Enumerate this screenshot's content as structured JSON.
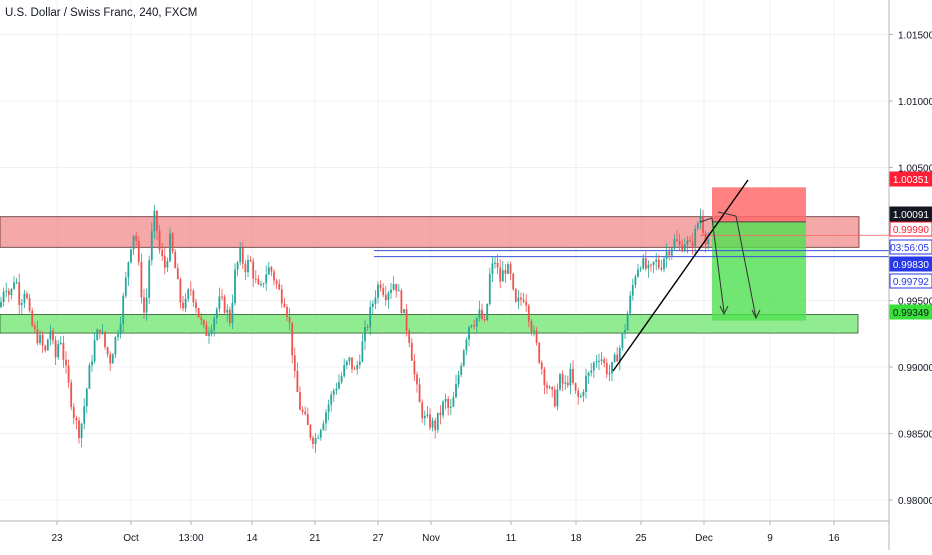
{
  "header": {
    "title": "U.S. Dollar / Swiss Franc, 240, FXCM"
  },
  "colors": {
    "up": "#26a69a",
    "down": "#ef5350",
    "resistance_zone": "#f28b8b",
    "support_zone": "#7ee87e",
    "stop_zone": "#ff6b6b",
    "target_zone": "#4fe04f",
    "blue_line": "#3b4fe0",
    "label_black": "#131722",
    "label_red": "#ff1e36",
    "label_blue": "#2638e8",
    "label_green": "#39e039"
  },
  "chart_data": {
    "type": "candlestick",
    "symbol": "U.S. Dollar / Swiss Franc",
    "interval": "240",
    "source": "FXCM",
    "ylim": [
      0.9774,
      1.019
    ],
    "y_ticks": [
      "1.01500",
      "1.01000",
      "1.00500",
      "0.99500",
      "0.99000",
      "0.98500",
      "0.98000"
    ],
    "x_ticks": [
      "23",
      "Oct",
      "13:00",
      "14",
      "21",
      "27",
      "Nov",
      "11",
      "18",
      "25",
      "Dec",
      "9",
      "16"
    ],
    "price_labels": [
      {
        "text": "1.00351",
        "style": "red"
      },
      {
        "text": "1.00091",
        "style": "black"
      },
      {
        "text": "0.99990",
        "style": "outline-red"
      },
      {
        "text": "03:56:05",
        "style": "outline-blue"
      },
      {
        "text": "0.99830",
        "style": "blue"
      },
      {
        "text": "0.99792",
        "style": "outline-blue"
      },
      {
        "text": "0.99349",
        "style": "green"
      }
    ],
    "path": [
      [
        0,
        0.9945
      ],
      [
        5,
        0.9965
      ],
      [
        10,
        0.9952
      ],
      [
        15,
        0.997
      ],
      [
        20,
        0.9948
      ],
      [
        25,
        0.996
      ],
      [
        30,
        0.9935
      ],
      [
        35,
        0.9925
      ],
      [
        40,
        0.992
      ],
      [
        45,
        0.991
      ],
      [
        50,
        0.993
      ],
      [
        55,
        0.9905
      ],
      [
        60,
        0.9925
      ],
      [
        65,
        0.99
      ],
      [
        70,
        0.988
      ],
      [
        75,
        0.986
      ],
      [
        80,
        0.985
      ],
      [
        85,
        0.9875
      ],
      [
        90,
        0.99
      ],
      [
        95,
        0.992
      ],
      [
        100,
        0.993
      ],
      [
        105,
        0.9915
      ],
      [
        110,
        0.9905
      ],
      [
        115,
        0.992
      ],
      [
        120,
        0.9935
      ],
      [
        125,
        0.996
      ],
      [
        130,
        0.999
      ],
      [
        135,
        1.0005
      ],
      [
        140,
        0.9965
      ],
      [
        145,
        0.9935
      ],
      [
        150,
        0.999
      ],
      [
        155,
        1.0015
      ],
      [
        160,
        0.9985
      ],
      [
        165,
        0.9975
      ],
      [
        170,
        0.9995
      ],
      [
        175,
        0.9975
      ],
      [
        180,
        0.995
      ],
      [
        185,
        0.9945
      ],
      [
        190,
        0.996
      ],
      [
        195,
        0.995
      ],
      [
        200,
        0.9935
      ],
      [
        205,
        0.9925
      ],
      [
        210,
        0.993
      ],
      [
        215,
        0.994
      ],
      [
        220,
        0.995
      ],
      [
        225,
        0.9945
      ],
      [
        230,
        0.9935
      ],
      [
        235,
        0.997
      ],
      [
        240,
        0.9985
      ],
      [
        245,
        0.9975
      ],
      [
        250,
        0.998
      ],
      [
        255,
        0.9965
      ],
      [
        260,
        0.9955
      ],
      [
        265,
        0.997
      ],
      [
        270,
        0.9975
      ],
      [
        275,
        0.9965
      ],
      [
        280,
        0.9955
      ],
      [
        285,
        0.995
      ],
      [
        290,
        0.993
      ],
      [
        295,
        0.989
      ],
      [
        300,
        0.987
      ],
      [
        305,
        0.986
      ],
      [
        310,
        0.985
      ],
      [
        315,
        0.9845
      ],
      [
        320,
        0.9855
      ],
      [
        325,
        0.9865
      ],
      [
        330,
        0.9875
      ],
      [
        335,
        0.9885
      ],
      [
        340,
        0.989
      ],
      [
        345,
        0.99
      ],
      [
        350,
        0.9905
      ],
      [
        355,
        0.9895
      ],
      [
        360,
        0.991
      ],
      [
        365,
        0.9925
      ],
      [
        370,
        0.994
      ],
      [
        375,
        0.9955
      ],
      [
        380,
        0.9965
      ],
      [
        385,
        0.9955
      ],
      [
        390,
        0.996
      ],
      [
        395,
        0.9965
      ],
      [
        400,
        0.995
      ],
      [
        405,
        0.9935
      ],
      [
        410,
        0.992
      ],
      [
        415,
        0.989
      ],
      [
        420,
        0.987
      ],
      [
        425,
        0.986
      ],
      [
        430,
        0.9858
      ],
      [
        435,
        0.9855
      ],
      [
        440,
        0.9865
      ],
      [
        445,
        0.9875
      ],
      [
        450,
        0.9865
      ],
      [
        455,
        0.988
      ],
      [
        460,
        0.99
      ],
      [
        465,
        0.992
      ],
      [
        470,
        0.9935
      ],
      [
        475,
        0.9935
      ],
      [
        480,
        0.994
      ],
      [
        485,
        0.993
      ],
      [
        490,
        0.997
      ],
      [
        495,
        0.998
      ],
      [
        500,
        0.9965
      ],
      [
        505,
        0.9975
      ],
      [
        510,
        0.997
      ],
      [
        515,
        0.9945
      ],
      [
        520,
        0.995
      ],
      [
        525,
        0.9955
      ],
      [
        530,
        0.9935
      ],
      [
        535,
        0.992
      ],
      [
        540,
        0.9905
      ],
      [
        545,
        0.989
      ],
      [
        550,
        0.988
      ],
      [
        555,
        0.9875
      ],
      [
        560,
        0.989
      ],
      [
        565,
        0.9885
      ],
      [
        570,
        0.9895
      ],
      [
        575,
        0.988
      ],
      [
        580,
        0.9875
      ],
      [
        585,
        0.989
      ],
      [
        590,
        0.9895
      ],
      [
        595,
        0.9905
      ],
      [
        600,
        0.991
      ],
      [
        605,
        0.99
      ],
      [
        610,
        0.9895
      ],
      [
        615,
        0.9905
      ],
      [
        620,
        0.9915
      ],
      [
        625,
        0.993
      ],
      [
        630,
        0.995
      ],
      [
        635,
        0.997
      ],
      [
        640,
        0.998
      ],
      [
        645,
        0.9975
      ],
      [
        650,
        0.997
      ],
      [
        655,
        0.998
      ],
      [
        660,
        0.9975
      ],
      [
        665,
        0.9985
      ],
      [
        670,
        0.999
      ],
      [
        675,
        0.9995
      ],
      [
        680,
        0.999
      ],
      [
        685,
        0.9995
      ],
      [
        690,
        0.999
      ],
      [
        695,
        1.0
      ],
      [
        700,
        1.0015
      ],
      [
        705,
        0.9998
      ],
      [
        710,
        0.9995
      ]
    ],
    "overlays": {
      "resistance_zone": {
        "price_from": 1.0013,
        "price_to": 0.999,
        "x_from": 0,
        "x_to": 859
      },
      "support_zone": {
        "price_from": 0.99395,
        "price_to": 0.99255,
        "x_from": 0,
        "x_to": 858
      },
      "stop_zone": {
        "price_from": 1.00351,
        "price_to": 1.00091
      },
      "target_zone": {
        "price_from": 1.00091,
        "price_to": 0.99349
      },
      "blue_line_1": 0.99875,
      "blue_line_2": 0.9983,
      "red_line": 0.9999
    }
  }
}
